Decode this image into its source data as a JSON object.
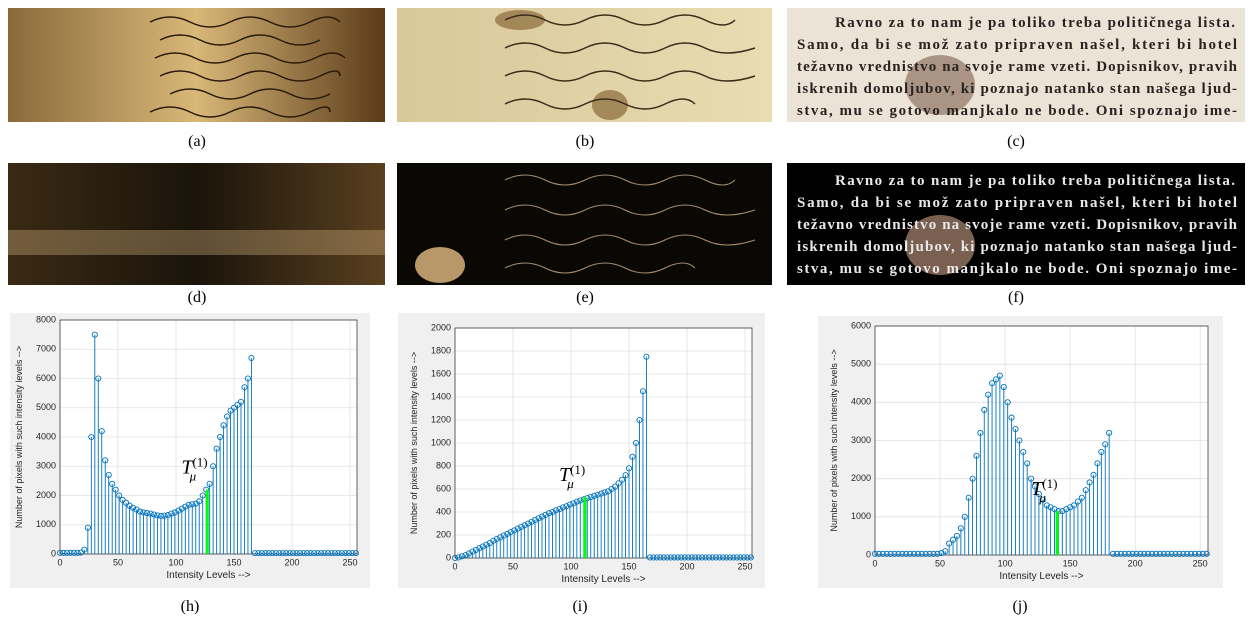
{
  "panels": [
    {
      "label": "(a)"
    },
    {
      "label": "(b)"
    },
    {
      "label": "(c)",
      "text_lines": [
        "Ravno za to nam je pa toliko treba političnega lista.",
        "Samo, da bi se mož zato pripraven našel, kteri bi hotel",
        "težavno vrednistvo na svoje rame vzeti. Dopisnikov, pravih",
        "iskrenih domoljubov, ki poznajo natanko stan našega ljud-",
        "stva, mu se gotovo manjkalo ne bode. Oni spoznajo ime-"
      ]
    },
    {
      "label": "(d)"
    },
    {
      "label": "(e)"
    },
    {
      "label": "(f)",
      "text_lines": [
        "Ravno za to nam je pa toliko treba političnega lista.",
        "Samo, da bi se mož zato pripraven našel, kteri bi hotel",
        "težavno vrednistvo na svoje rame vzeti. Dopisnikov, pravih",
        "iskrenih domoljubov, ki poznajo natanko stan našega ljud-",
        "stva, mu se gotovo manjkalo ne bode. Oni spoznajo ime-"
      ]
    },
    {
      "label": "(h)"
    },
    {
      "label": "(i)"
    },
    {
      "label": "(j)"
    }
  ],
  "chart_data": [
    {
      "type": "stem",
      "xlabel": "Intensity Levels  -->",
      "ylabel": "Number of pixels with such intensity levels -->",
      "color": "#0072bd",
      "grid": true,
      "x": [
        0,
        3,
        6,
        9,
        12,
        15,
        18,
        21,
        24,
        27,
        30,
        33,
        36,
        39,
        42,
        45,
        48,
        51,
        54,
        57,
        60,
        63,
        66,
        69,
        72,
        75,
        78,
        81,
        84,
        87,
        90,
        93,
        96,
        99,
        102,
        105,
        108,
        111,
        114,
        117,
        120,
        123,
        126,
        129,
        132,
        135,
        138,
        141,
        144,
        147,
        150,
        153,
        156,
        159,
        162,
        165,
        168,
        171,
        174,
        177,
        180,
        183,
        186,
        189,
        192,
        195,
        198,
        201,
        204,
        207,
        210,
        213,
        216,
        219,
        222,
        225,
        228,
        231,
        234,
        237,
        240,
        243,
        246,
        249,
        252,
        255
      ],
      "values": [
        40,
        40,
        40,
        40,
        40,
        40,
        50,
        150,
        900,
        4000,
        7500,
        6000,
        4200,
        3200,
        2700,
        2400,
        2200,
        2000,
        1850,
        1750,
        1650,
        1580,
        1520,
        1450,
        1420,
        1400,
        1380,
        1350,
        1320,
        1300,
        1310,
        1330,
        1380,
        1420,
        1480,
        1550,
        1620,
        1680,
        1700,
        1720,
        1800,
        2000,
        2200,
        2400,
        3000,
        3600,
        4000,
        4400,
        4700,
        4900,
        5000,
        5100,
        5200,
        5700,
        6000,
        6700,
        30,
        30,
        30,
        30,
        30,
        30,
        30,
        30,
        30,
        30,
        30,
        30,
        30,
        30,
        30,
        30,
        30,
        30,
        30,
        30,
        30,
        30,
        30,
        30,
        30,
        30,
        30,
        30,
        30,
        30
      ],
      "threshold": {
        "x": 127,
        "value": 2200,
        "color": "#00ff00"
      },
      "annotation": {
        "text": "T",
        "sub": "μ",
        "sup": "(1)"
      },
      "xlim": [
        0,
        256
      ],
      "xticks": [
        0,
        50,
        100,
        150,
        200,
        250
      ],
      "ylim": [
        0,
        8000
      ],
      "yticks": [
        0,
        1000,
        2000,
        3000,
        4000,
        5000,
        6000,
        7000,
        8000
      ]
    },
    {
      "type": "stem",
      "xlabel": "Intensity Levels  -->",
      "ylabel": "Number of pixels with such intensity levels -->",
      "color": "#0072bd",
      "grid": true,
      "x": [
        0,
        3,
        6,
        9,
        12,
        15,
        18,
        21,
        24,
        27,
        30,
        33,
        36,
        39,
        42,
        45,
        48,
        51,
        54,
        57,
        60,
        63,
        66,
        69,
        72,
        75,
        78,
        81,
        84,
        87,
        90,
        93,
        96,
        99,
        102,
        105,
        108,
        111,
        114,
        117,
        120,
        123,
        126,
        129,
        132,
        135,
        138,
        141,
        144,
        147,
        150,
        153,
        156,
        159,
        162,
        165,
        168,
        171,
        174,
        177,
        180,
        183,
        186,
        189,
        192,
        195,
        198,
        201,
        204,
        207,
        210,
        213,
        216,
        219,
        222,
        225,
        228,
        231,
        234,
        237,
        240,
        243,
        246,
        249,
        252,
        255
      ],
      "values": [
        0,
        5,
        15,
        25,
        40,
        55,
        70,
        85,
        100,
        115,
        130,
        150,
        165,
        180,
        195,
        210,
        225,
        240,
        255,
        270,
        285,
        300,
        315,
        330,
        345,
        360,
        375,
        390,
        400,
        415,
        425,
        440,
        450,
        465,
        475,
        490,
        500,
        510,
        520,
        530,
        540,
        550,
        560,
        570,
        580,
        600,
        620,
        650,
        680,
        720,
        780,
        880,
        1000,
        1200,
        1450,
        1750,
        5,
        5,
        5,
        5,
        5,
        5,
        5,
        5,
        5,
        5,
        5,
        5,
        5,
        5,
        5,
        5,
        5,
        5,
        5,
        5,
        5,
        5,
        5,
        5,
        5,
        5,
        5,
        5,
        5,
        5
      ],
      "threshold": {
        "x": 112,
        "value": 530,
        "color": "#00ff00"
      },
      "annotation": {
        "text": "T",
        "sub": "μ",
        "sup": "(1)"
      },
      "xlim": [
        0,
        256
      ],
      "xticks": [
        0,
        50,
        100,
        150,
        200,
        250
      ],
      "ylim": [
        0,
        2000
      ],
      "yticks": [
        0,
        200,
        400,
        600,
        800,
        1000,
        1200,
        1400,
        1600,
        1800,
        2000
      ]
    },
    {
      "type": "stem",
      "xlabel": "Intensity Levels  -->",
      "ylabel": "Number of pixels with such intensity levels -->",
      "color": "#0072bd",
      "grid": true,
      "x": [
        0,
        3,
        6,
        9,
        12,
        15,
        18,
        21,
        24,
        27,
        30,
        33,
        36,
        39,
        42,
        45,
        48,
        51,
        54,
        57,
        60,
        63,
        66,
        69,
        72,
        75,
        78,
        81,
        84,
        87,
        90,
        93,
        96,
        99,
        102,
        105,
        108,
        111,
        114,
        117,
        120,
        123,
        126,
        129,
        132,
        135,
        138,
        141,
        144,
        147,
        150,
        153,
        156,
        159,
        162,
        165,
        168,
        171,
        174,
        177,
        180,
        183,
        186,
        189,
        192,
        195,
        198,
        201,
        204,
        207,
        210,
        213,
        216,
        219,
        222,
        225,
        228,
        231,
        234,
        237,
        240,
        243,
        246,
        249,
        252,
        255
      ],
      "values": [
        30,
        30,
        30,
        30,
        30,
        30,
        30,
        30,
        30,
        30,
        30,
        30,
        30,
        30,
        30,
        30,
        30,
        50,
        100,
        300,
        400,
        500,
        700,
        1000,
        1500,
        2000,
        2600,
        3200,
        3800,
        4200,
        4500,
        4600,
        4700,
        4400,
        4000,
        3600,
        3300,
        3000,
        2700,
        2400,
        2000,
        1800,
        1600,
        1450,
        1300,
        1250,
        1200,
        1150,
        1150,
        1200,
        1250,
        1300,
        1400,
        1500,
        1700,
        1900,
        2100,
        2400,
        2700,
        2900,
        3200,
        30,
        30,
        30,
        30,
        30,
        30,
        30,
        30,
        30,
        30,
        30,
        30,
        30,
        30,
        30,
        30,
        30,
        30,
        30,
        30,
        30,
        30,
        30,
        30,
        30
      ],
      "threshold": {
        "x": 140,
        "value": 1150,
        "color": "#00ff00"
      },
      "annotation": {
        "text": "T",
        "sub": "μ",
        "sup": "(1)"
      },
      "xlim": [
        0,
        256
      ],
      "xticks": [
        0,
        50,
        100,
        150,
        200,
        250
      ],
      "ylim": [
        0,
        6000
      ],
      "yticks": [
        0,
        1000,
        2000,
        3000,
        4000,
        5000,
        6000
      ]
    }
  ]
}
